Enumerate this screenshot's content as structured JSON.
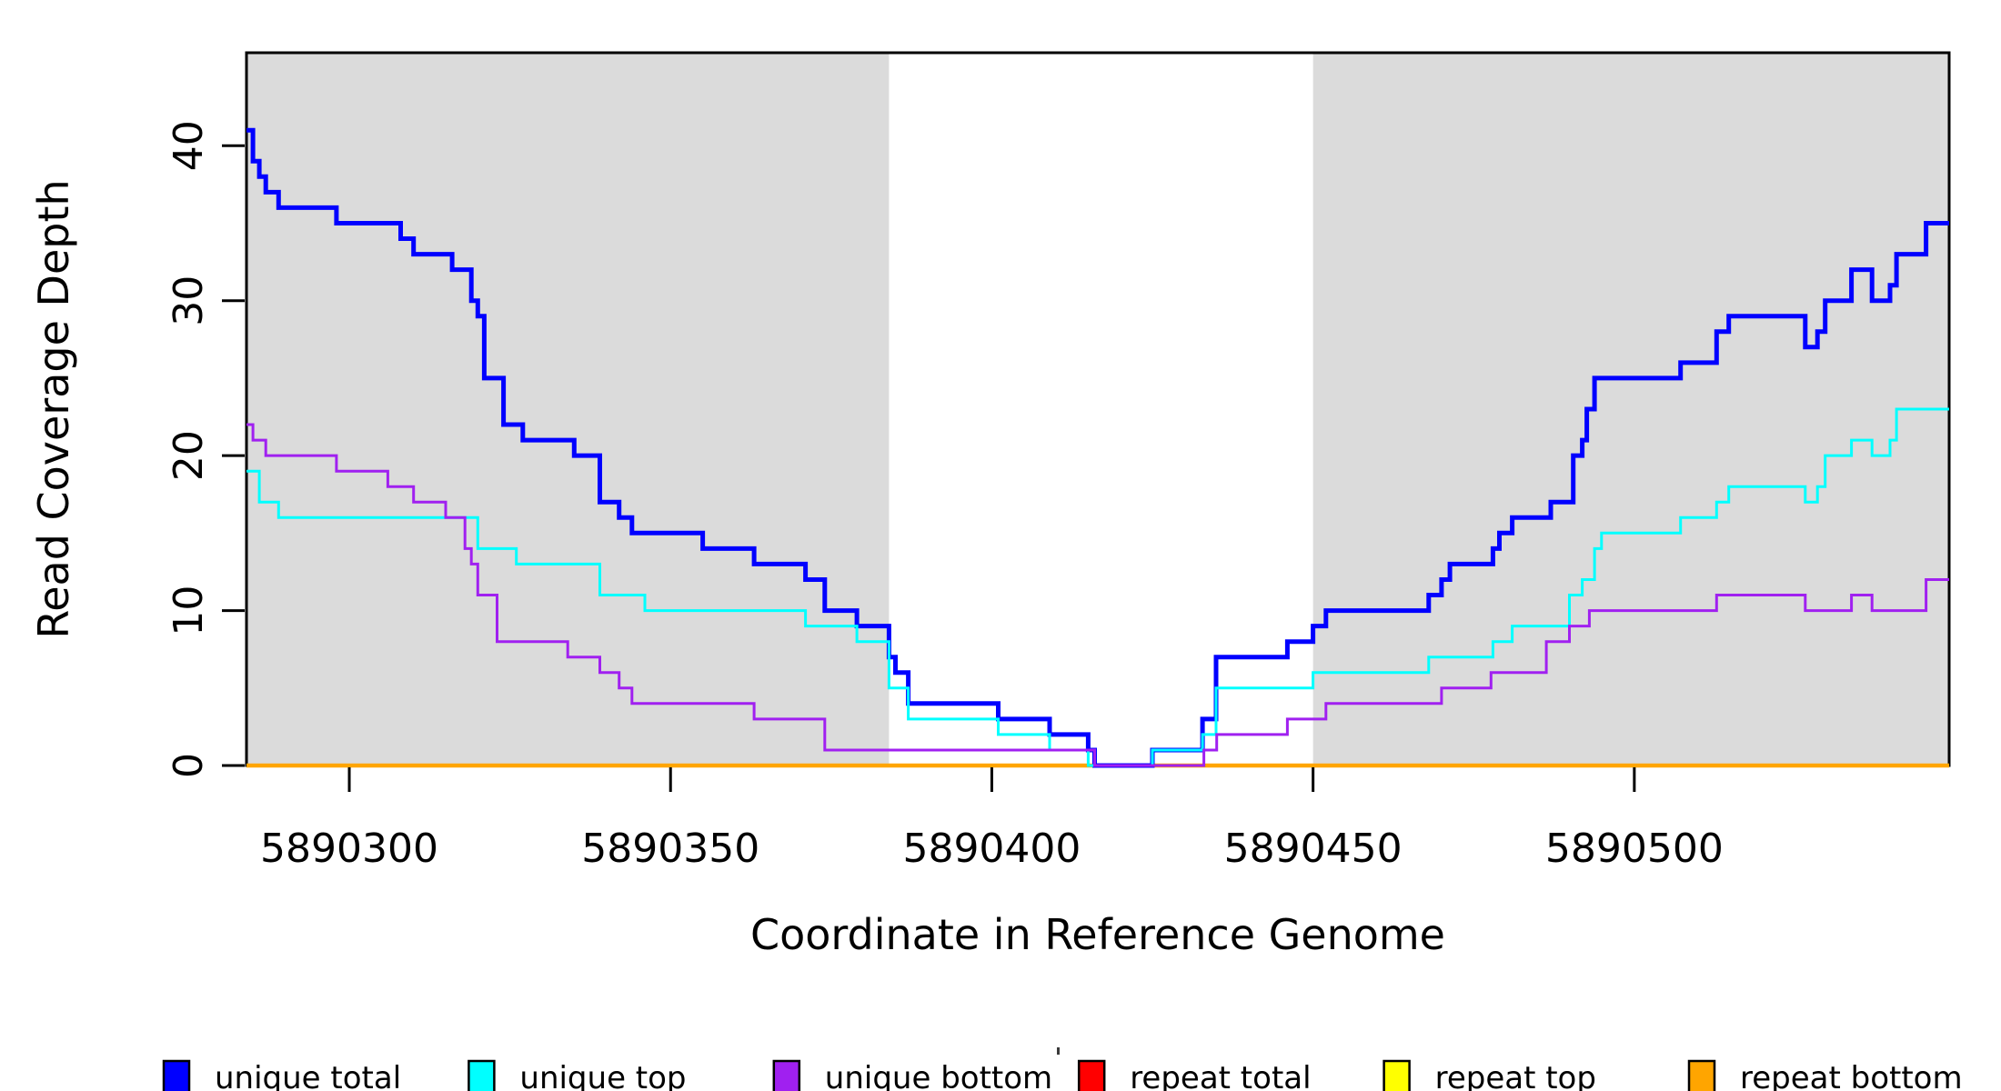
{
  "chart_data": {
    "type": "line",
    "subtype": "step",
    "title": "",
    "xlabel": "Coordinate in Reference Genome",
    "ylabel": "Read Coverage Depth",
    "xlim": [
      5890284,
      5890549
    ],
    "ylim": [
      0,
      46
    ],
    "x_ticks": [
      5890300,
      5890350,
      5890400,
      5890450,
      5890500
    ],
    "y_ticks": [
      0,
      10,
      20,
      30,
      40
    ],
    "grid": false,
    "background": {
      "shaded_color": "#DBDBDB",
      "shaded_regions": [
        [
          5890284,
          5890384
        ],
        [
          5890450,
          5890549
        ]
      ],
      "unshaded_region": [
        5890384,
        5890450
      ]
    },
    "series": [
      {
        "name": "repeat total",
        "color": "#FF0000",
        "line_width": 3,
        "steps": [
          [
            5890284,
            0
          ]
        ]
      },
      {
        "name": "repeat top",
        "color": "#FFFF00",
        "line_width": 3,
        "steps": [
          [
            5890284,
            0
          ]
        ]
      },
      {
        "name": "repeat bottom",
        "color": "#FFA500",
        "line_width": 4.5,
        "steps": [
          [
            5890284,
            0
          ]
        ]
      },
      {
        "name": "unique total",
        "color": "#0000FF",
        "line_width": 5,
        "steps": [
          [
            5890284,
            41
          ],
          [
            5890285,
            39
          ],
          [
            5890286,
            38
          ],
          [
            5890287,
            37
          ],
          [
            5890289,
            36
          ],
          [
            5890298,
            35
          ],
          [
            5890308,
            34
          ],
          [
            5890310,
            33
          ],
          [
            5890316,
            32
          ],
          [
            5890319,
            30
          ],
          [
            5890320,
            29
          ],
          [
            5890321,
            25
          ],
          [
            5890324,
            22
          ],
          [
            5890327,
            21
          ],
          [
            5890335,
            20
          ],
          [
            5890339,
            17
          ],
          [
            5890342,
            16
          ],
          [
            5890344,
            15
          ],
          [
            5890355,
            14
          ],
          [
            5890363,
            13
          ],
          [
            5890371,
            12
          ],
          [
            5890374,
            10
          ],
          [
            5890379,
            9
          ],
          [
            5890384,
            7
          ],
          [
            5890385,
            6
          ],
          [
            5890387,
            4
          ],
          [
            5890401,
            3
          ],
          [
            5890409,
            2
          ],
          [
            5890415,
            1
          ],
          [
            5890416,
            0
          ],
          [
            5890425,
            1
          ],
          [
            5890432.8,
            3
          ],
          [
            5890434.9,
            7
          ],
          [
            5890446,
            8
          ],
          [
            5890450,
            9
          ],
          [
            5890452,
            10
          ],
          [
            5890468,
            11
          ],
          [
            5890470,
            12
          ],
          [
            5890471.3,
            13
          ],
          [
            5890478,
            14
          ],
          [
            5890479,
            15
          ],
          [
            5890481,
            16
          ],
          [
            5890487,
            17
          ],
          [
            5890490.5,
            20
          ],
          [
            5890491.9,
            21
          ],
          [
            5890492.6,
            23
          ],
          [
            5890493.8,
            25
          ],
          [
            5890507.2,
            26
          ],
          [
            5890512.8,
            28
          ],
          [
            5890514.7,
            29
          ],
          [
            5890526.6,
            27
          ],
          [
            5890528.5,
            28
          ],
          [
            5890529.7,
            30
          ],
          [
            5890533.8,
            32
          ],
          [
            5890537,
            30
          ],
          [
            5890539.8,
            31
          ],
          [
            5890540.8,
            33
          ],
          [
            5890545.4,
            35
          ]
        ]
      },
      {
        "name": "unique top",
        "color": "#00FFFF",
        "line_width": 3,
        "steps": [
          [
            5890284,
            19
          ],
          [
            5890286,
            17
          ],
          [
            5890289,
            16
          ],
          [
            5890320,
            14
          ],
          [
            5890326,
            13
          ],
          [
            5890339,
            11
          ],
          [
            5890346,
            10
          ],
          [
            5890371,
            9
          ],
          [
            5890379,
            8
          ],
          [
            5890384,
            5
          ],
          [
            5890387,
            3
          ],
          [
            5890401,
            2
          ],
          [
            5890409,
            1
          ],
          [
            5890415,
            0
          ],
          [
            5890425,
            1
          ],
          [
            5890432.8,
            2
          ],
          [
            5890434.9,
            5
          ],
          [
            5890450,
            6
          ],
          [
            5890468,
            7
          ],
          [
            5890478,
            8
          ],
          [
            5890481,
            9
          ],
          [
            5890489.9,
            11
          ],
          [
            5890491.9,
            12
          ],
          [
            5890493.8,
            14
          ],
          [
            5890494.9,
            15
          ],
          [
            5890507.2,
            16
          ],
          [
            5890512.8,
            17
          ],
          [
            5890514.7,
            18
          ],
          [
            5890526.6,
            17
          ],
          [
            5890528.5,
            18
          ],
          [
            5890529.7,
            20
          ],
          [
            5890533.8,
            21
          ],
          [
            5890537,
            20
          ],
          [
            5890539.8,
            21
          ],
          [
            5890540.8,
            23
          ]
        ]
      },
      {
        "name": "unique bottom",
        "color": "#A020F0",
        "line_width": 3,
        "steps": [
          [
            5890284,
            22
          ],
          [
            5890285,
            21
          ],
          [
            5890287,
            20
          ],
          [
            5890298,
            19
          ],
          [
            5890306,
            18
          ],
          [
            5890310,
            17
          ],
          [
            5890315,
            16
          ],
          [
            5890318,
            14
          ],
          [
            5890319,
            13
          ],
          [
            5890320,
            11
          ],
          [
            5890323,
            8
          ],
          [
            5890334,
            7
          ],
          [
            5890339,
            6
          ],
          [
            5890342,
            5
          ],
          [
            5890344,
            4
          ],
          [
            5890363,
            3
          ],
          [
            5890374,
            1
          ],
          [
            5890416,
            0
          ],
          [
            5890433,
            1
          ],
          [
            5890435,
            2
          ],
          [
            5890446,
            3
          ],
          [
            5890452,
            4
          ],
          [
            5890470,
            5
          ],
          [
            5890477.7,
            6
          ],
          [
            5890486.3,
            8
          ],
          [
            5890489.9,
            9
          ],
          [
            5890493,
            10
          ],
          [
            5890512.8,
            11
          ],
          [
            5890526.6,
            10
          ],
          [
            5890533.8,
            11
          ],
          [
            5890537,
            10
          ],
          [
            5890545.4,
            12
          ]
        ]
      }
    ],
    "legend": {
      "position": "bottom",
      "items": [
        {
          "label": "unique total",
          "color": "#0000FF"
        },
        {
          "label": "unique top",
          "color": "#00FFFF"
        },
        {
          "label": "unique bottom",
          "color": "#A020F0"
        },
        {
          "label": "repeat total",
          "color": "#FF0000"
        },
        {
          "label": "repeat top",
          "color": "#FFFF00"
        },
        {
          "label": "repeat bottom",
          "color": "#FFA500"
        }
      ]
    },
    "axis_color": "#000000"
  }
}
